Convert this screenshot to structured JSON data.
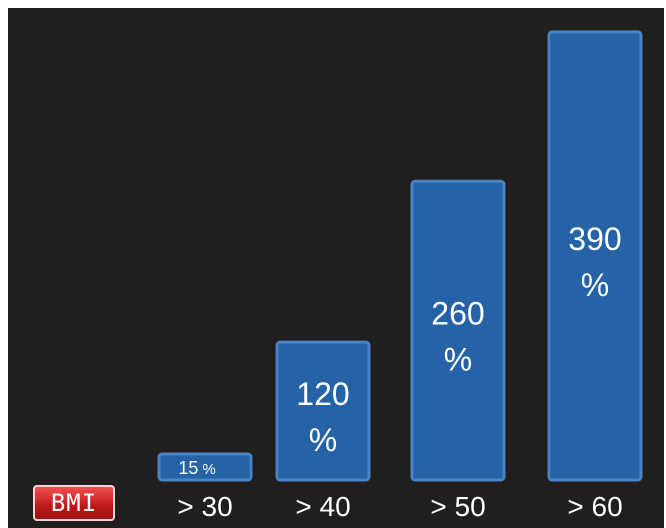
{
  "chart_data": {
    "type": "bar",
    "categories": [
      "> 30",
      "> 40",
      "> 50",
      "> 60"
    ],
    "values": [
      15,
      120,
      260,
      390
    ],
    "value_labels": [
      "15 %",
      "120 %",
      "260 %",
      "390 %"
    ],
    "title": "",
    "xlabel": "",
    "ylabel": "",
    "ylim": [
      0,
      400
    ],
    "grid": false,
    "colors": {
      "background": "#211e1e",
      "bar_fill": "#2563a6",
      "bar_stroke": "#4a84c4",
      "text": "#ffffff"
    }
  },
  "badge": {
    "label": "BMI"
  }
}
